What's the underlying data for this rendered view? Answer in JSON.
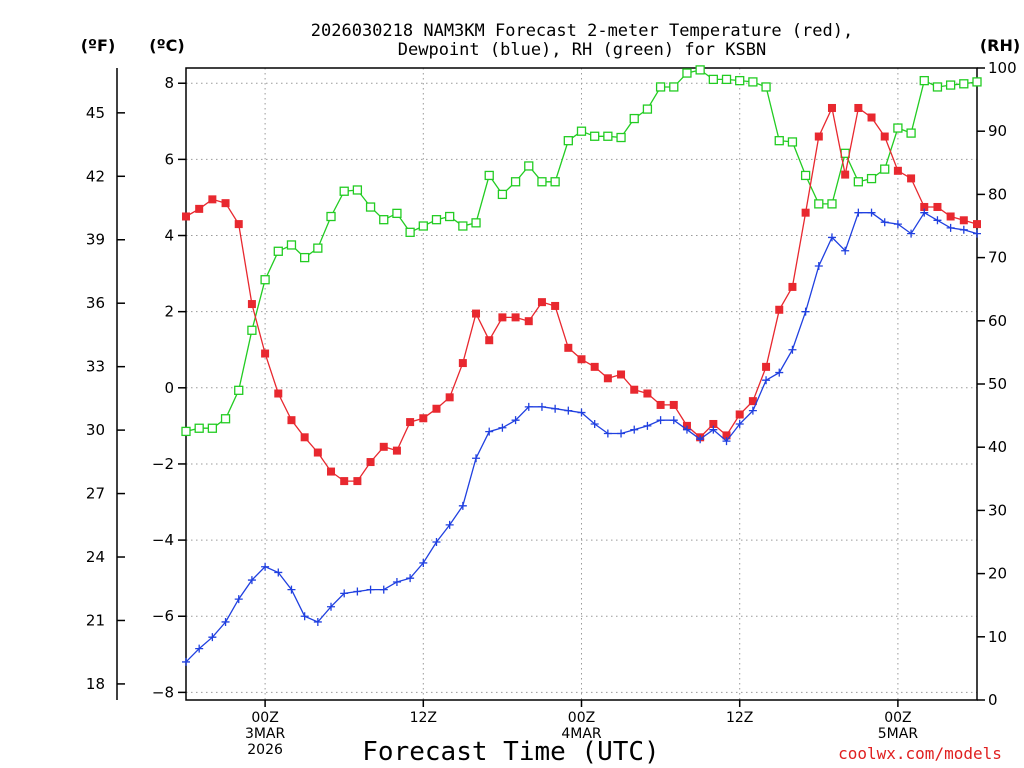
{
  "chart_data": {
    "type": "line",
    "title": [
      "2026030218 NAM3KM Forecast 2-meter Temperature (red),",
      "Dewpoint (blue), RH (green) for KSBN"
    ],
    "xlabel": "Forecast Time (UTC)",
    "credit": "coolwx.com/models",
    "units": {
      "fahrenheit": "(ºF)",
      "celsius": "(ºC)",
      "rh": "(RH)"
    },
    "axes": {
      "celsius": {
        "range": [
          -8.2,
          8.4
        ],
        "ticks": [
          -8,
          -6,
          -4,
          -2,
          0,
          2,
          4,
          6,
          8
        ],
        "tick_labels": [
          "−8",
          "−6",
          "−4",
          "−2",
          "0",
          "2",
          "4",
          "6",
          "8"
        ]
      },
      "fahrenheit": {
        "ticks": [
          18,
          21,
          24,
          27,
          30,
          33,
          36,
          39,
          42,
          45
        ],
        "tick_labels": [
          "18",
          "21",
          "24",
          "27",
          "30",
          "33",
          "36",
          "39",
          "42",
          "45"
        ]
      },
      "rh": {
        "range": [
          0,
          100
        ],
        "ticks": [
          0,
          10,
          20,
          30,
          40,
          50,
          60,
          70,
          80,
          90,
          100
        ],
        "tick_labels": [
          "0",
          "10",
          "20",
          "30",
          "40",
          "50",
          "60",
          "70",
          "80",
          "90",
          "100"
        ]
      },
      "x": {
        "range": [
          0,
          60
        ],
        "unit": "forecast hour",
        "grid": true,
        "ticks": [
          {
            "hour": 6,
            "lines": [
              "00Z",
              "3MAR",
              "2026"
            ]
          },
          {
            "hour": 18,
            "lines": [
              "12Z"
            ]
          },
          {
            "hour": 30,
            "lines": [
              "00Z",
              "4MAR"
            ]
          },
          {
            "hour": 42,
            "lines": [
              "12Z"
            ]
          },
          {
            "hour": 54,
            "lines": [
              "00Z",
              "5MAR"
            ]
          }
        ]
      }
    },
    "x_hours": [
      0,
      1,
      2,
      3,
      4,
      5,
      6,
      7,
      8,
      9,
      10,
      11,
      12,
      13,
      14,
      15,
      16,
      17,
      18,
      19,
      20,
      21,
      22,
      23,
      24,
      25,
      26,
      27,
      28,
      29,
      30,
      31,
      32,
      33,
      34,
      35,
      36,
      37,
      38,
      39,
      40,
      41,
      42,
      43,
      44,
      45,
      46,
      47,
      48,
      49,
      50,
      51,
      52,
      53,
      54,
      55,
      56,
      57,
      58,
      59,
      60
    ],
    "series": [
      {
        "name": "Temperature",
        "unit": "°C",
        "color": "#e8282f",
        "marker": "filled-square",
        "values": [
          4.5,
          4.7,
          4.95,
          4.85,
          4.3,
          2.2,
          0.9,
          -0.15,
          -0.85,
          -1.3,
          -1.7,
          -2.2,
          -2.45,
          -2.45,
          -1.95,
          -1.55,
          -1.65,
          -0.9,
          -0.8,
          -0.55,
          -0.25,
          0.65,
          1.95,
          1.25,
          1.85,
          1.85,
          1.75,
          2.25,
          2.15,
          1.05,
          0.75,
          0.55,
          0.25,
          0.35,
          -0.05,
          -0.15,
          -0.45,
          -0.45,
          -1.0,
          -1.3,
          -0.95,
          -1.25,
          -0.7,
          -0.35,
          0.55,
          2.05,
          2.65,
          4.6,
          6.6,
          7.35,
          5.6,
          7.35,
          7.1,
          6.6,
          5.7,
          5.5,
          4.75,
          4.75,
          4.5,
          4.4,
          4.3
        ]
      },
      {
        "name": "Dewpoint",
        "unit": "°C",
        "color": "#2040e0",
        "marker": "plus",
        "values": [
          -7.2,
          -6.85,
          -6.55,
          -6.15,
          -5.55,
          -5.05,
          -4.7,
          -4.85,
          -5.3,
          -6.0,
          -6.15,
          -5.75,
          -5.4,
          -5.35,
          -5.3,
          -5.3,
          -5.1,
          -5.0,
          -4.6,
          -4.05,
          -3.6,
          -3.1,
          -1.85,
          -1.15,
          -1.05,
          -0.85,
          -0.5,
          -0.5,
          -0.55,
          -0.6,
          -0.65,
          -0.95,
          -1.2,
          -1.2,
          -1.1,
          -1.0,
          -0.85,
          -0.85,
          -1.1,
          -1.35,
          -1.1,
          -1.4,
          -0.95,
          -0.6,
          0.2,
          0.4,
          1.0,
          2.0,
          3.2,
          3.95,
          3.6,
          4.6,
          4.6,
          4.35,
          4.3,
          4.05,
          4.6,
          4.4,
          4.2,
          4.15,
          4.05
        ]
      },
      {
        "name": "RH",
        "unit": "%",
        "color": "#22cc22",
        "marker": "open-square",
        "values": [
          42.5,
          43,
          43,
          44.5,
          49,
          58.5,
          66.5,
          71,
          72,
          70,
          71.5,
          76.5,
          80.5,
          80.7,
          78,
          76,
          77,
          74,
          75,
          76,
          76.5,
          75,
          75.5,
          83,
          80,
          82,
          84.5,
          82,
          82,
          88.5,
          90,
          89.2,
          89.2,
          89,
          92,
          93.5,
          97,
          97,
          99.2,
          99.7,
          98.2,
          98.2,
          98,
          97.8,
          97,
          88.5,
          88.3,
          83,
          78.5,
          78.5,
          86.5,
          82,
          82.5,
          84,
          90.5,
          89.7,
          98,
          97,
          97.3,
          97.5,
          97.8
        ]
      }
    ]
  }
}
